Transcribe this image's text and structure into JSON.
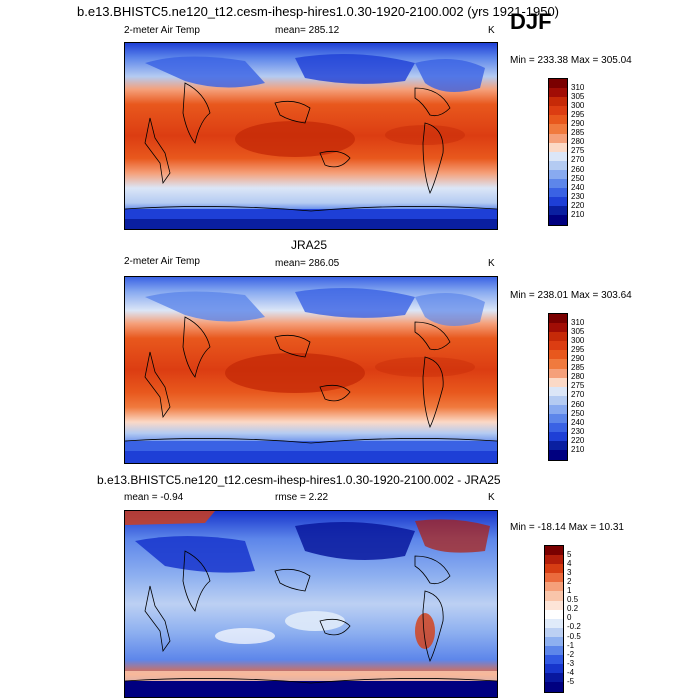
{
  "season": "DJF",
  "panels": [
    {
      "id": "model",
      "header": "b.e13.BHISTC5.ne120_t12.cesm-ihesp-hires1.0.30-1920-2100.002 (yrs 1921-1950)",
      "left_label": "2-meter Air Temp",
      "center_label": "mean= 285.12",
      "unit": "K",
      "minmax": "Min = 233.38 Max = 305.04",
      "colorbar_labels": [
        "310",
        "305",
        "300",
        "295",
        "290",
        "285",
        "280",
        "275",
        "270",
        "260",
        "250",
        "240",
        "230",
        "220",
        "210"
      ]
    },
    {
      "id": "obs",
      "header": "JRA25",
      "left_label": "2-meter Air Temp",
      "center_label": "mean= 286.05",
      "unit": "K",
      "minmax": "Min = 238.01 Max = 303.64",
      "colorbar_labels": [
        "310",
        "305",
        "300",
        "295",
        "290",
        "285",
        "280",
        "275",
        "270",
        "260",
        "250",
        "240",
        "230",
        "220",
        "210"
      ]
    },
    {
      "id": "diff",
      "header": "b.e13.BHISTC5.ne120_t12.cesm-ihesp-hires1.0.30-1920-2100.002 - JRA25",
      "left_label": "mean =  -0.94",
      "center_label": "rmse =   2.22",
      "unit": "K",
      "minmax": "Min = -18.14 Max =  10.31",
      "colorbar_labels": [
        "5",
        "4",
        "3",
        "2",
        "1",
        "0.5",
        "0.2",
        "0",
        "-0.2",
        "-0.5",
        "-1",
        "-2",
        "-3",
        "-4",
        "-5"
      ]
    }
  ],
  "colors": {
    "temp_scale": [
      "#7a0000",
      "#a10d05",
      "#c62a08",
      "#dc3d12",
      "#e8581d",
      "#f07a3e",
      "#f5a07a",
      "#fbd9c6",
      "#dbe6f7",
      "#b4cbf2",
      "#88aaf0",
      "#5d86ea",
      "#3a62e4",
      "#1e3fd6",
      "#0a1fa0",
      "#000080"
    ],
    "diff_scale": [
      "#7a0000",
      "#b21d0a",
      "#d63d13",
      "#eb6b3d",
      "#f5a07a",
      "#f9c5aa",
      "#fde4d7",
      "#ffffff",
      "#e0ebfa",
      "#bcd0f3",
      "#8eb0f0",
      "#5d86ea",
      "#3159e3",
      "#1735cc",
      "#08179e",
      "#000080"
    ]
  }
}
